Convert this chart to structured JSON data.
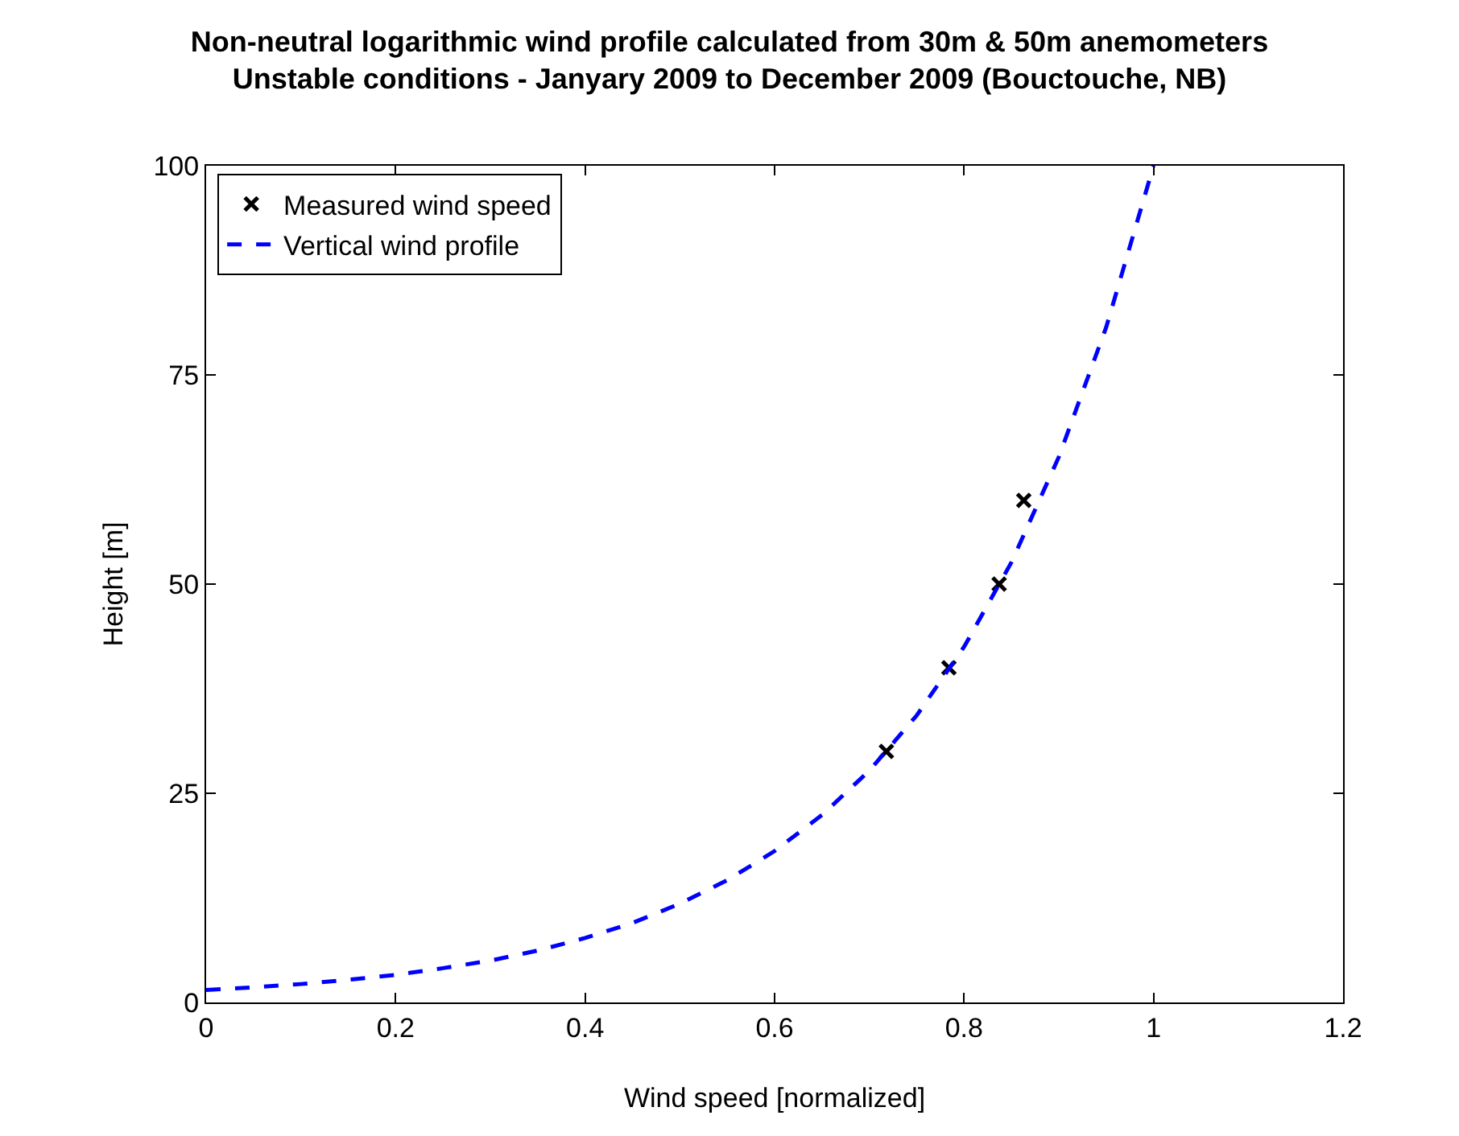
{
  "chart_data": {
    "type": "scatter",
    "title": "Non-neutral logarithmic wind profile calculated from 30m & 50m anemometers",
    "subtitle": "Unstable conditions - Janyary 2009 to December 2009 (Bouctouche, NB)",
    "xlabel": "Wind speed [normalized]",
    "ylabel": "Height [m]",
    "series": [
      {
        "name": "Measured wind speed",
        "marker": "cross",
        "color": "#000000",
        "x": [
          0.718,
          0.784,
          0.837,
          0.863
        ],
        "values": [
          30,
          40,
          50,
          60
        ]
      },
      {
        "name": "Vertical wind profile",
        "type": "line",
        "marker": "none",
        "line_style": "dashed",
        "color": "#0000ff",
        "x": [
          0,
          0.05,
          0.1,
          0.15,
          0.2,
          0.25,
          0.3,
          0.35,
          0.4,
          0.45,
          0.5,
          0.55,
          0.6,
          0.65,
          0.7,
          0.75,
          0.8,
          0.85,
          0.9,
          0.95,
          1.0
        ],
        "values": [
          1.5,
          1.8,
          2.2,
          2.7,
          3.3,
          4.1,
          5.0,
          6.2,
          7.7,
          9.5,
          11.8,
          14.6,
          18.1,
          22.4,
          27.7,
          34.3,
          42.5,
          52.6,
          65.2,
          80.7,
          100
        ]
      }
    ],
    "xlim": [
      0,
      1.2
    ],
    "xticks": [
      0,
      0.2,
      0.4,
      0.6,
      0.8,
      1,
      1.2
    ],
    "ylim": [
      0,
      100
    ],
    "yticks": [
      0,
      25,
      50,
      75,
      100
    ],
    "legend": "top left"
  }
}
